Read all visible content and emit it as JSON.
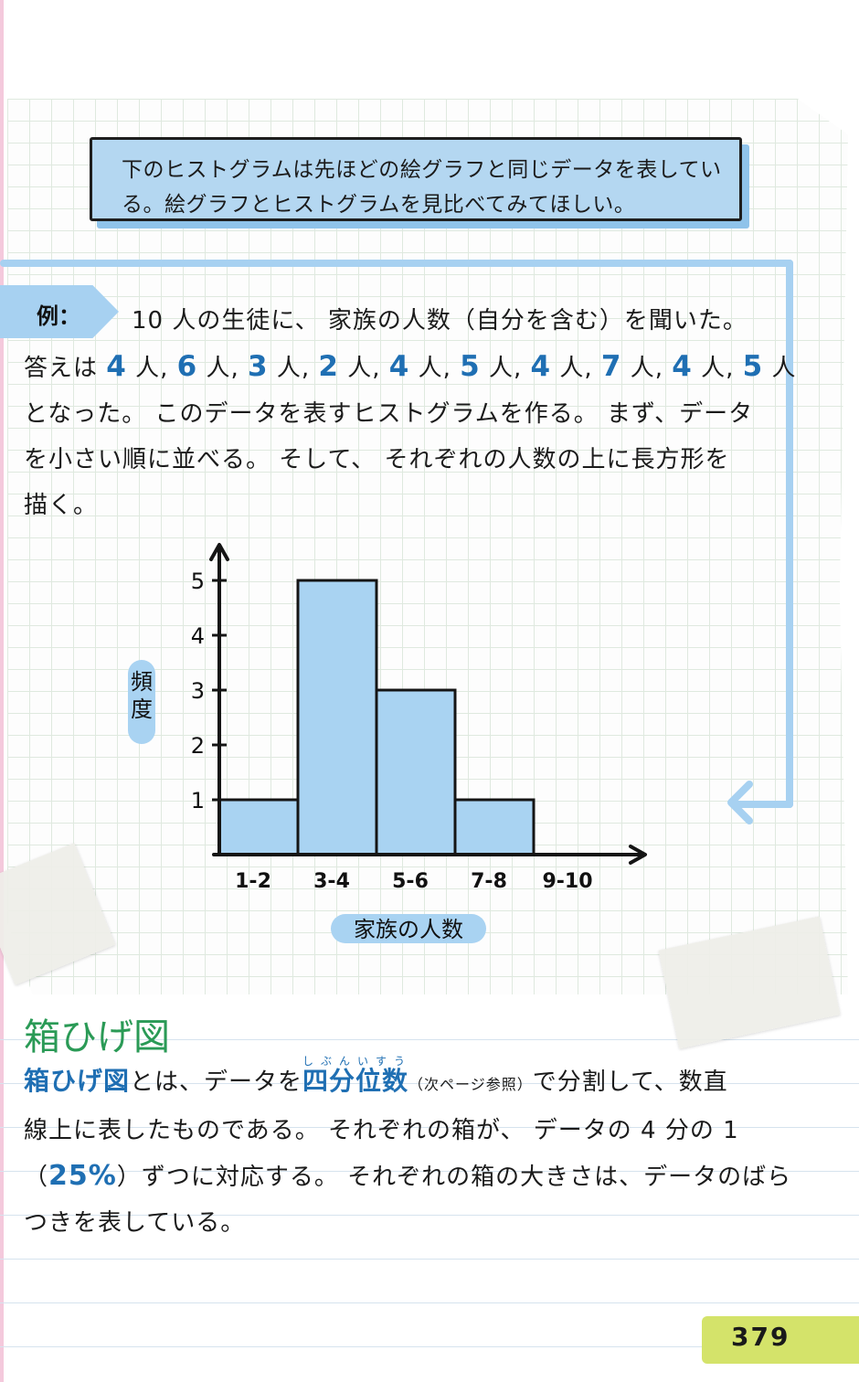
{
  "intro": {
    "line1": "下のヒストグラムは先ほどの絵グラフと同じデータを表してい",
    "line2": "る。絵グラフとヒストグラムを見比べてみてほしい。"
  },
  "example": {
    "label": "例：",
    "line1": "10 人の生徒に、 家族の人数（自分を含む）を聞いた。",
    "line2_prefix": "答えは ",
    "answers": [
      "4",
      "6",
      "3",
      "2",
      "4",
      "5",
      "4",
      "7",
      "4",
      "5"
    ],
    "unit": "人",
    "line3": "となった。 このデータを表すヒストグラムを作る。 まず、データ",
    "line4": "を小さい順に並べる。 そして、 それぞれの人数の上に長方形を",
    "line5": "描く。"
  },
  "chart_data": {
    "type": "bar",
    "categories": [
      "1-2",
      "3-4",
      "5-6",
      "7-8",
      "9-10"
    ],
    "values": [
      1,
      5,
      3,
      1,
      0
    ],
    "ylabel": "頻度",
    "xlabel": "家族の人数",
    "yticks": [
      "1",
      "2",
      "3",
      "4",
      "5"
    ],
    "ylim": [
      0,
      5
    ],
    "bar_color": "#a9d3f2",
    "grid": false
  },
  "section": {
    "title": "箱ひげ図",
    "kw1": "箱ひげ図",
    "t1": "とは、データを",
    "kw2": "四分位数",
    "kw2_ruby": "しぶんいすう",
    "t2_small": "（次ページ参照）",
    "t2": "で分割して、数直",
    "line2": "線上に表したものである。 それぞれの箱が、 データの 4 分の 1",
    "line3_open": "（",
    "pct": "25%",
    "line3_rest": "）ずつに対応する。 それぞれの箱の大きさは、データのばら",
    "line4": "つきを表している。"
  },
  "page_number": "379",
  "colors": {
    "accent_blue": "#1f6fb3",
    "light_blue": "#a7d1f1",
    "green_title": "#2a9a56",
    "page_tab": "#d4e36a"
  }
}
